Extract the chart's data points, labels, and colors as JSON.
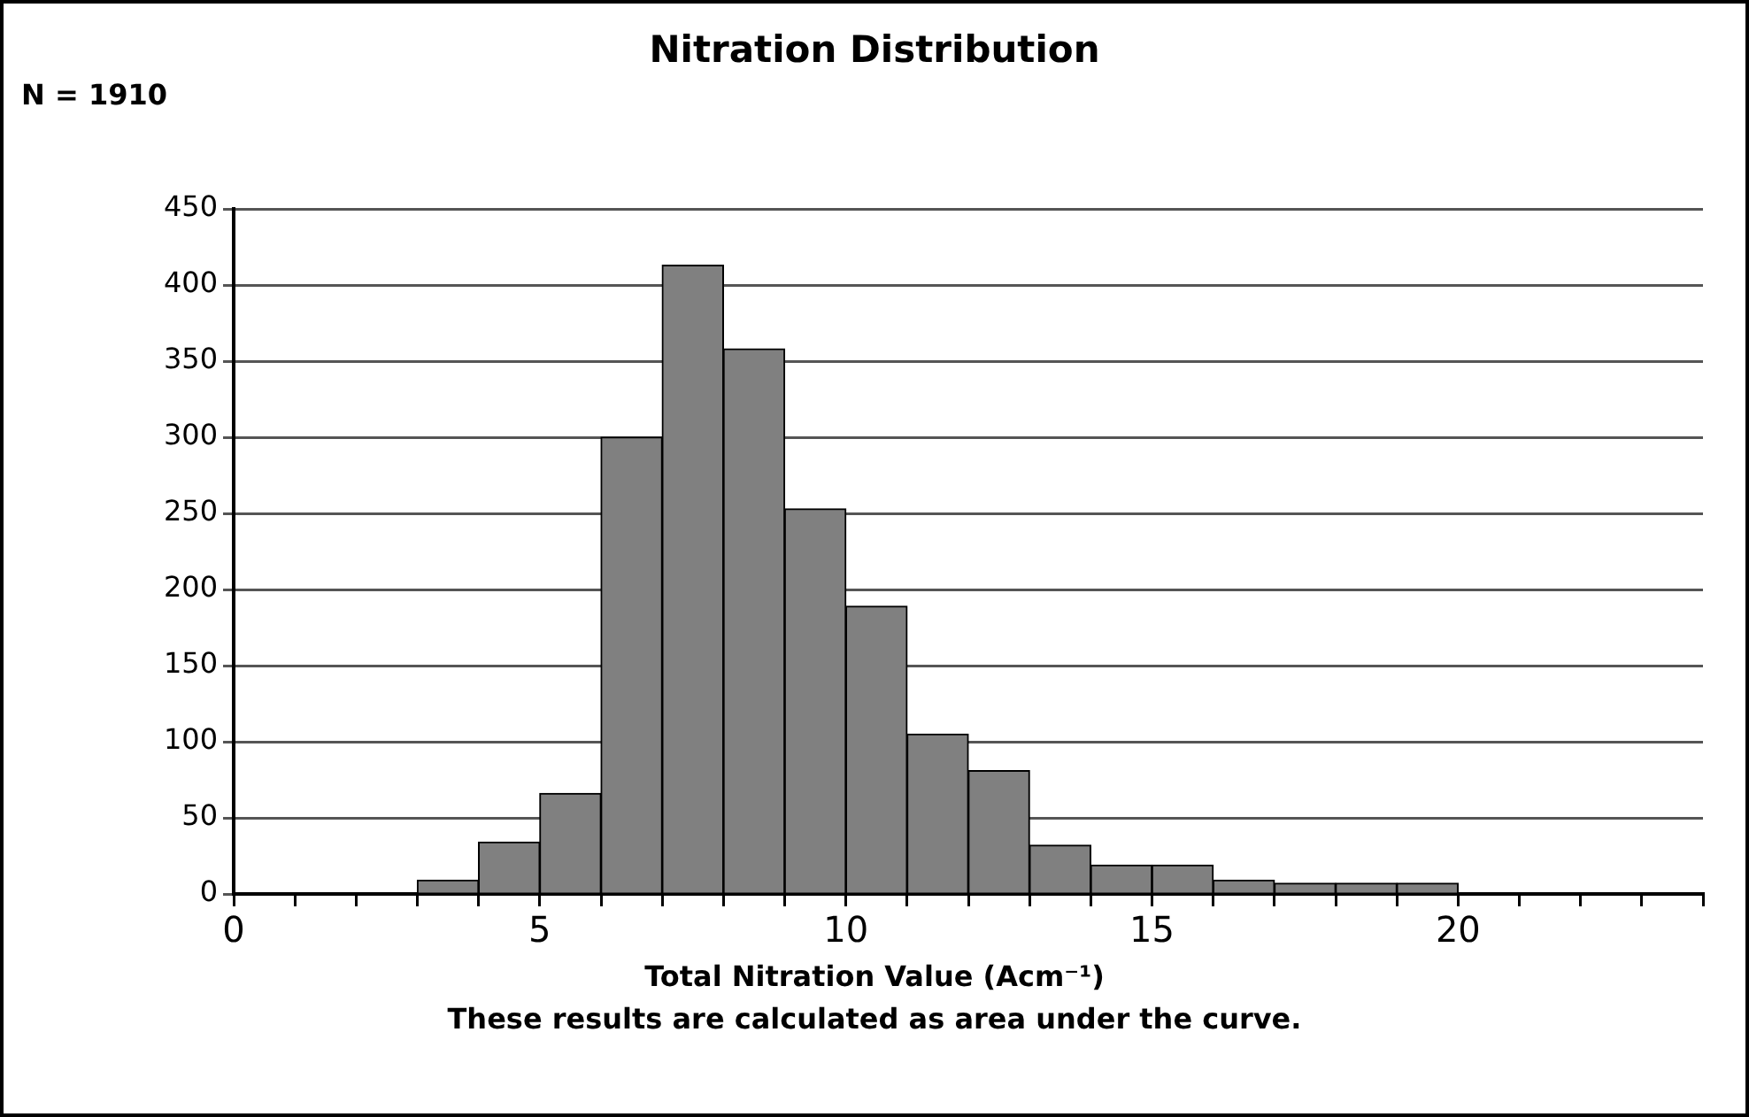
{
  "chart_data": {
    "type": "histogram",
    "title": "Nitration Distribution",
    "xlabel": "Total Nitration Value (Acm⁻¹)",
    "annotations": [
      "N = 1910",
      "These results are calculated as area under the curve."
    ],
    "bins": [
      0,
      1,
      2,
      3,
      4,
      5,
      6,
      7,
      8,
      9,
      10,
      11,
      12,
      13,
      14,
      15,
      16,
      17,
      18,
      19,
      20,
      21,
      22,
      23,
      24
    ],
    "values": [
      0,
      0,
      0,
      9,
      34,
      66,
      300,
      413,
      358,
      253,
      189,
      105,
      81,
      32,
      19,
      19,
      9,
      7,
      7,
      7,
      0,
      0,
      0,
      0
    ],
    "color": "#808080",
    "xlim": [
      0,
      24
    ],
    "xticks": [
      0,
      {
        "value": 1,
        "label": null
      },
      {
        "value": 2,
        "label": null
      },
      {
        "value": 3,
        "label": null
      },
      {
        "value": 4,
        "label": null
      },
      5,
      {
        "value": 6,
        "label": null
      },
      {
        "value": 7,
        "label": null
      },
      {
        "value": 8,
        "label": null
      },
      {
        "value": 9,
        "label": null
      },
      10,
      {
        "value": 11,
        "label": null
      },
      {
        "value": 12,
        "label": null
      },
      {
        "value": 13,
        "label": null
      },
      {
        "value": 14,
        "label": null
      },
      15,
      {
        "value": 16,
        "label": null
      },
      {
        "value": 17,
        "label": null
      },
      {
        "value": 18,
        "label": null
      },
      {
        "value": 19,
        "label": null
      },
      20,
      {
        "value": 21,
        "label": null
      },
      {
        "value": 22,
        "label": null
      },
      {
        "value": 23,
        "label": null
      },
      {
        "value": 24,
        "label": null
      }
    ],
    "ylim": [
      0,
      450
    ],
    "yticks": [
      0,
      50,
      100,
      150,
      200,
      250,
      300,
      350,
      400,
      450
    ],
    "grid": "y"
  }
}
